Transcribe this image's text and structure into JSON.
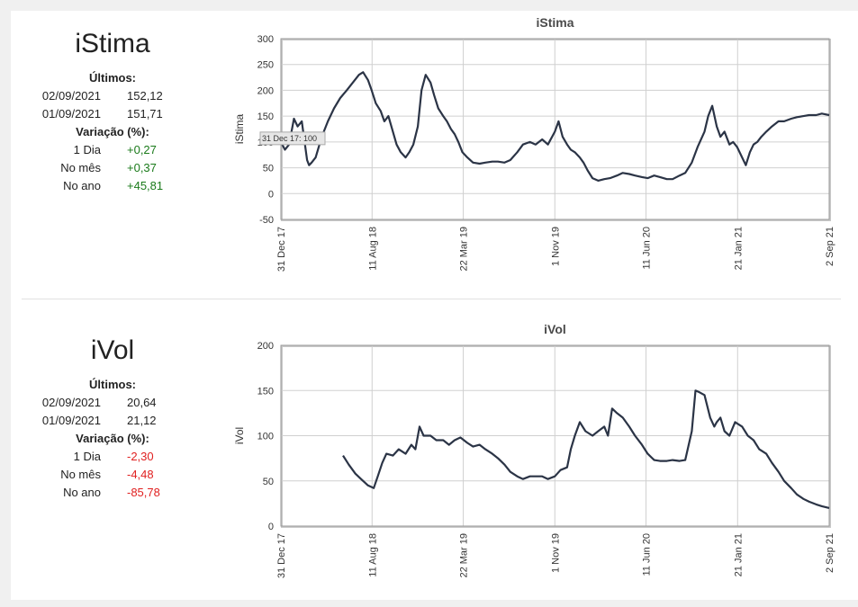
{
  "panels": [
    {
      "name": "iStima",
      "latest_label": "Últimos:",
      "latest": [
        {
          "date": "02/09/2021",
          "value": "152,12"
        },
        {
          "date": "01/09/2021",
          "value": "151,71"
        }
      ],
      "variation_label": "Variação (%):",
      "variation": [
        {
          "label": "1 Dia",
          "value": "+0,27",
          "sign": "pos"
        },
        {
          "label": "No mês",
          "value": "+0,37",
          "sign": "pos"
        },
        {
          "label": "No ano",
          "value": "+45,81",
          "sign": "pos"
        }
      ],
      "tooltip": "31 Dec 17: 100"
    },
    {
      "name": "iVol",
      "latest_label": "Últimos:",
      "latest": [
        {
          "date": "02/09/2021",
          "value": "20,64"
        },
        {
          "date": "01/09/2021",
          "value": "21,12"
        }
      ],
      "variation_label": "Variação (%):",
      "variation": [
        {
          "label": "1 Dia",
          "value": "-2,30",
          "sign": "neg"
        },
        {
          "label": "No mês",
          "value": "-4,48",
          "sign": "neg"
        },
        {
          "label": "No ano",
          "value": "-85,78",
          "sign": "neg"
        }
      ]
    }
  ],
  "chart_data": [
    {
      "type": "line",
      "title": "iStima",
      "ylabel": "iStima",
      "xlabel": "",
      "ylim": [
        -50,
        300
      ],
      "yticks": [
        -50,
        0,
        50,
        100,
        150,
        200,
        250,
        300
      ],
      "xlim": [
        "2017-12-31",
        "2021-09-02"
      ],
      "xticks": [
        {
          "date": "2017-12-31",
          "label": "31 Dec 17"
        },
        {
          "date": "2018-08-11",
          "label": "11 Aug 18"
        },
        {
          "date": "2019-03-22",
          "label": "22 Mar 19"
        },
        {
          "date": "2019-11-01",
          "label": "1 Nov 19"
        },
        {
          "date": "2020-06-11",
          "label": "11 Jun 20"
        },
        {
          "date": "2021-01-21",
          "label": "21 Jan 21"
        },
        {
          "date": "2021-09-02",
          "label": "2 Sep 21"
        }
      ],
      "grid": true,
      "color": "#2b3446",
      "series": [
        {
          "x": [
            "2017-12-31",
            "2018-01-10",
            "2018-01-20",
            "2018-02-01",
            "2018-02-10",
            "2018-02-20",
            "2018-03-05",
            "2018-03-10",
            "2018-03-16",
            "2018-03-26",
            "2018-04-10",
            "2018-04-25",
            "2018-05-10",
            "2018-05-25",
            "2018-06-10",
            "2018-06-25",
            "2018-07-10",
            "2018-07-20",
            "2018-08-01",
            "2018-08-10",
            "2018-08-20",
            "2018-09-01",
            "2018-09-10",
            "2018-09-20",
            "2018-10-01",
            "2018-10-10",
            "2018-10-20",
            "2018-11-01",
            "2018-11-10",
            "2018-11-20",
            "2018-12-01",
            "2018-12-10",
            "2018-12-20",
            "2019-01-01",
            "2019-01-10",
            "2019-01-20",
            "2019-02-01",
            "2019-02-10",
            "2019-02-20",
            "2019-03-01",
            "2019-03-10",
            "2019-03-20",
            "2019-04-01",
            "2019-04-15",
            "2019-05-01",
            "2019-05-15",
            "2019-06-01",
            "2019-06-15",
            "2019-07-01",
            "2019-07-15",
            "2019-08-01",
            "2019-08-15",
            "2019-09-01",
            "2019-09-15",
            "2019-10-01",
            "2019-10-15",
            "2019-11-01",
            "2019-11-10",
            "2019-11-20",
            "2019-12-01",
            "2019-12-10",
            "2019-12-20",
            "2020-01-01",
            "2020-01-10",
            "2020-01-20",
            "2020-02-01",
            "2020-02-15",
            "2020-03-01",
            "2020-03-15",
            "2020-04-01",
            "2020-04-15",
            "2020-05-01",
            "2020-05-15",
            "2020-06-01",
            "2020-06-15",
            "2020-07-01",
            "2020-07-15",
            "2020-08-01",
            "2020-08-15",
            "2020-09-01",
            "2020-09-15",
            "2020-10-01",
            "2020-10-15",
            "2020-11-01",
            "2020-11-10",
            "2020-11-20",
            "2020-12-01",
            "2020-12-10",
            "2020-12-20",
            "2021-01-01",
            "2021-01-10",
            "2021-01-20",
            "2021-02-01",
            "2021-02-10",
            "2021-02-20",
            "2021-03-01",
            "2021-03-10",
            "2021-03-20",
            "2021-04-01",
            "2021-04-15",
            "2021-05-01",
            "2021-05-15",
            "2021-06-01",
            "2021-06-15",
            "2021-07-01",
            "2021-07-15",
            "2021-08-01",
            "2021-08-15",
            "2021-09-02"
          ],
          "y": [
            100,
            85,
            95,
            145,
            130,
            140,
            65,
            55,
            60,
            70,
            110,
            140,
            165,
            185,
            200,
            215,
            230,
            235,
            220,
            200,
            175,
            160,
            140,
            150,
            120,
            95,
            80,
            70,
            80,
            95,
            130,
            200,
            230,
            215,
            190,
            165,
            150,
            140,
            125,
            115,
            100,
            80,
            70,
            60,
            58,
            60,
            62,
            62,
            60,
            65,
            80,
            95,
            100,
            95,
            105,
            95,
            120,
            140,
            110,
            95,
            85,
            80,
            70,
            60,
            45,
            30,
            25,
            28,
            30,
            35,
            40,
            38,
            35,
            32,
            30,
            35,
            32,
            28,
            28,
            35,
            40,
            60,
            90,
            120,
            150,
            170,
            130,
            110,
            120,
            95,
            100,
            90,
            70,
            55,
            80,
            95,
            100,
            110,
            120,
            130,
            140,
            140,
            145,
            148,
            150,
            152,
            152,
            155,
            152
          ]
        }
      ]
    },
    {
      "type": "line",
      "title": "iVol",
      "ylabel": "iVol",
      "xlabel": "",
      "ylim": [
        0,
        200
      ],
      "yticks": [
        0,
        50,
        100,
        150,
        200
      ],
      "xlim": [
        "2017-12-31",
        "2021-09-02"
      ],
      "xticks": [
        {
          "date": "2017-12-31",
          "label": "31 Dec 17"
        },
        {
          "date": "2018-08-11",
          "label": "11 Aug 18"
        },
        {
          "date": "2019-03-22",
          "label": "22 Mar 19"
        },
        {
          "date": "2019-11-01",
          "label": "1 Nov 19"
        },
        {
          "date": "2020-06-11",
          "label": "11 Jun 20"
        },
        {
          "date": "2021-01-21",
          "label": "21 Jan 21"
        },
        {
          "date": "2021-09-02",
          "label": "2 Sep 21"
        }
      ],
      "grid": true,
      "color": "#2b3446",
      "series": [
        {
          "x": [
            "2018-06-01",
            "2018-06-15",
            "2018-07-01",
            "2018-07-15",
            "2018-08-01",
            "2018-08-15",
            "2018-08-25",
            "2018-09-05",
            "2018-09-15",
            "2018-10-01",
            "2018-10-15",
            "2018-11-01",
            "2018-11-15",
            "2018-11-25",
            "2018-12-05",
            "2018-12-15",
            "2019-01-01",
            "2019-01-15",
            "2019-02-01",
            "2019-02-15",
            "2019-03-01",
            "2019-03-15",
            "2019-04-01",
            "2019-04-15",
            "2019-05-01",
            "2019-05-15",
            "2019-06-01",
            "2019-06-15",
            "2019-07-01",
            "2019-07-15",
            "2019-08-01",
            "2019-08-15",
            "2019-09-01",
            "2019-09-15",
            "2019-10-01",
            "2019-10-15",
            "2019-11-01",
            "2019-11-15",
            "2019-12-01",
            "2019-12-10",
            "2019-12-20",
            "2020-01-01",
            "2020-01-15",
            "2020-02-01",
            "2020-02-15",
            "2020-03-01",
            "2020-03-10",
            "2020-03-20",
            "2020-04-01",
            "2020-04-15",
            "2020-05-01",
            "2020-05-15",
            "2020-06-01",
            "2020-06-15",
            "2020-07-01",
            "2020-07-15",
            "2020-08-01",
            "2020-08-15",
            "2020-09-01",
            "2020-09-15",
            "2020-10-01",
            "2020-10-10",
            "2020-10-20",
            "2020-11-01",
            "2020-11-15",
            "2020-11-25",
            "2020-12-01",
            "2020-12-10",
            "2020-12-20",
            "2021-01-01",
            "2021-01-15",
            "2021-02-01",
            "2021-02-15",
            "2021-03-01",
            "2021-03-15",
            "2021-04-01",
            "2021-04-15",
            "2021-05-01",
            "2021-05-15",
            "2021-06-01",
            "2021-06-15",
            "2021-07-01",
            "2021-07-15",
            "2021-08-01",
            "2021-08-15",
            "2021-09-02"
          ],
          "y": [
            78,
            68,
            58,
            52,
            45,
            42,
            55,
            70,
            80,
            78,
            85,
            80,
            90,
            85,
            110,
            100,
            100,
            95,
            95,
            90,
            95,
            98,
            92,
            88,
            90,
            85,
            80,
            75,
            68,
            60,
            55,
            52,
            55,
            55,
            55,
            52,
            55,
            62,
            65,
            85,
            100,
            115,
            105,
            100,
            105,
            110,
            100,
            130,
            125,
            120,
            110,
            100,
            90,
            80,
            73,
            72,
            72,
            73,
            72,
            73,
            105,
            150,
            148,
            145,
            120,
            110,
            115,
            120,
            105,
            100,
            115,
            110,
            100,
            95,
            85,
            80,
            70,
            60,
            50,
            42,
            35,
            30,
            27,
            24,
            22,
            20
          ]
        }
      ]
    }
  ]
}
